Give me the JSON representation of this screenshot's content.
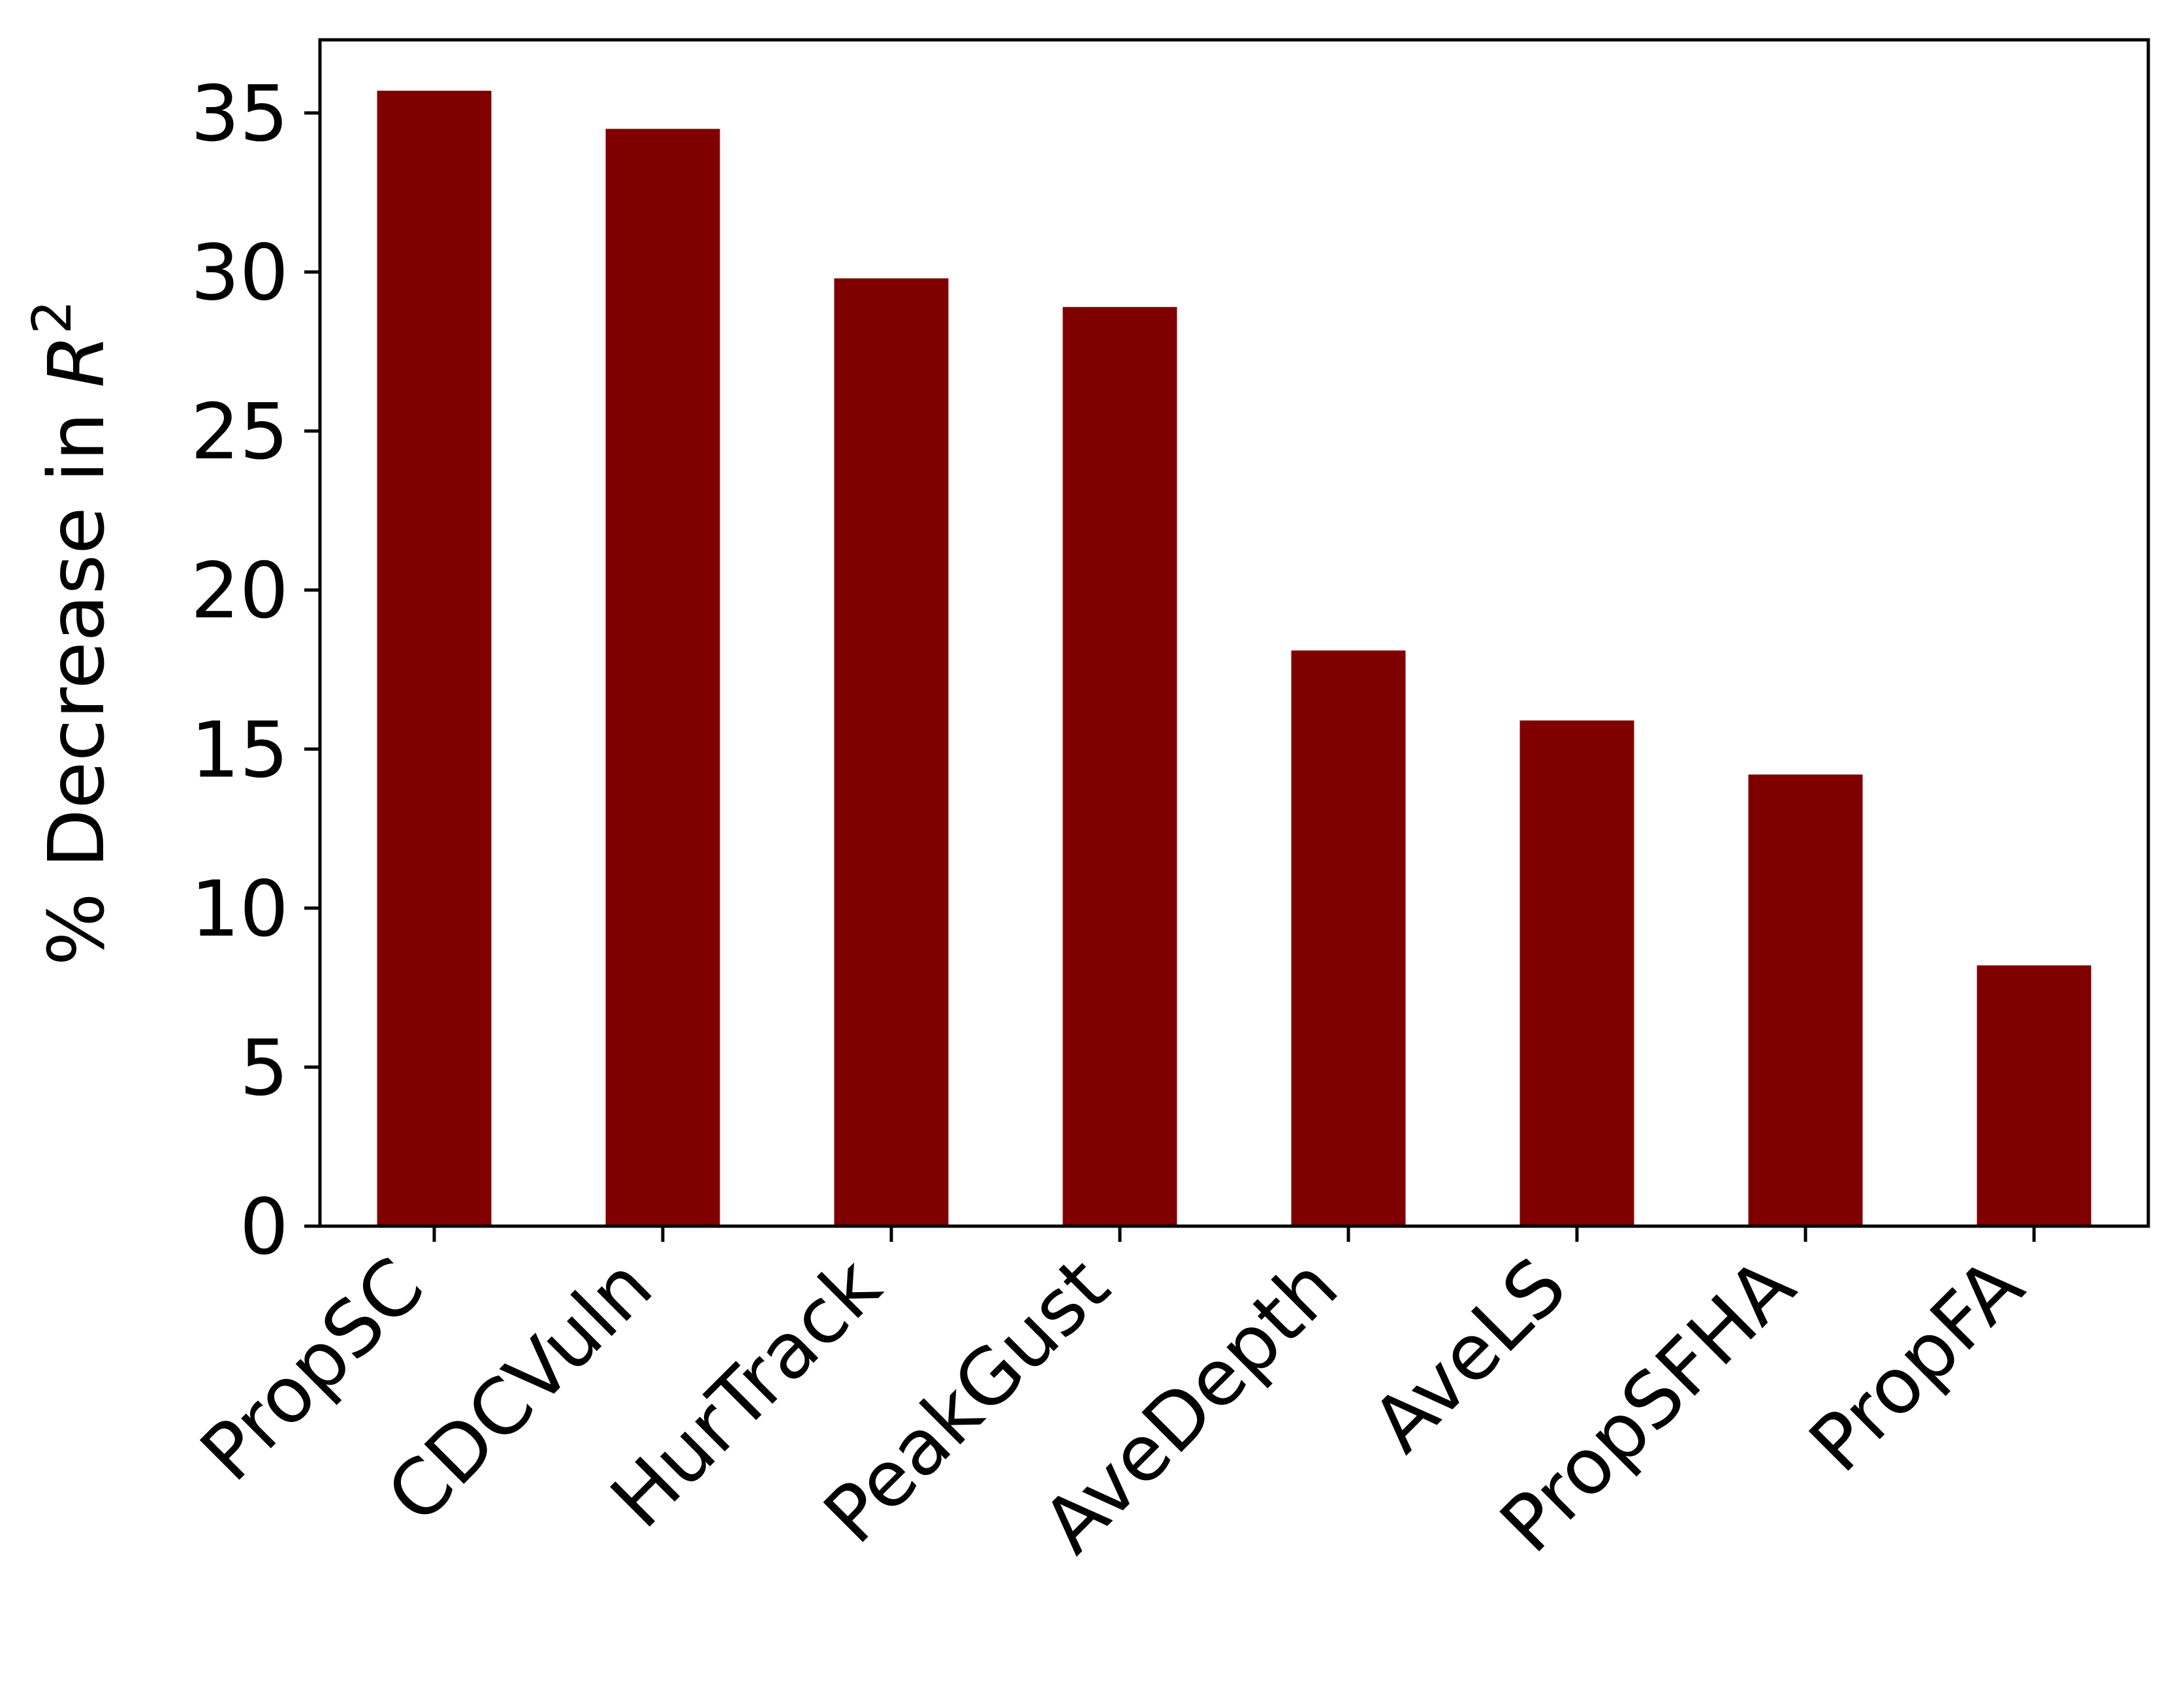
{
  "chart_data": {
    "type": "bar",
    "categories": [
      "PropSC",
      "CDCVuln",
      "HurTrack",
      "PeakGust",
      "AveDepth",
      "AveLS",
      "PropSFHA",
      "PropFA"
    ],
    "values": [
      35.7,
      34.5,
      29.8,
      28.9,
      18.1,
      15.9,
      14.2,
      8.2
    ],
    "title": "",
    "xlabel": "",
    "ylabel": "% Decrease in R",
    "ylabel_superscript": "2",
    "ylim": [
      0,
      37.3
    ],
    "yticks": [
      "0",
      "5",
      "10",
      "15",
      "20",
      "25",
      "30",
      "35"
    ],
    "bar_color": "#800000",
    "grid": false,
    "legend": "none"
  }
}
